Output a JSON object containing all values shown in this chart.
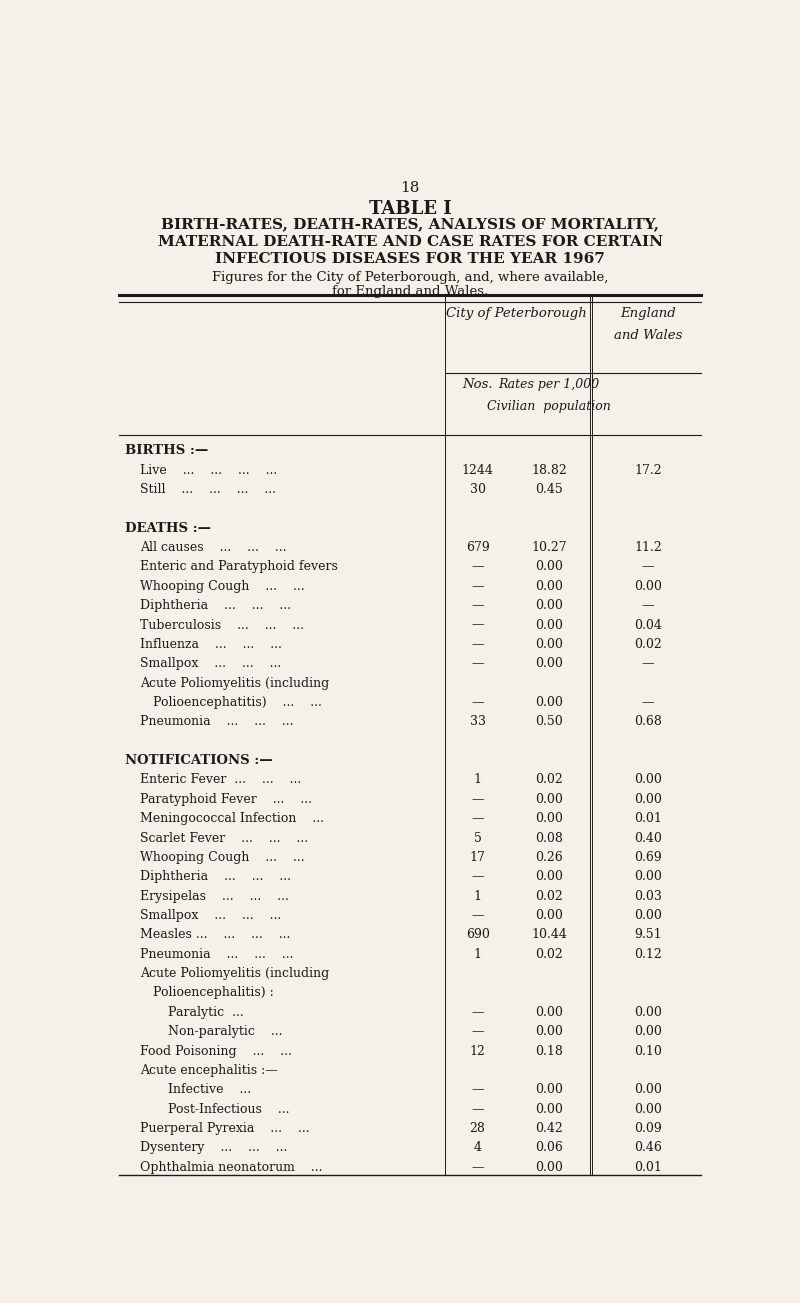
{
  "page_number": "18",
  "table_label": "TABLE I",
  "title_line1": "BIRTH-RATES, DEATH-RATES, ANALYSIS OF MORTALITY,",
  "title_line2": "MATERNAL DEATH-RATE AND CASE RATES FOR CERTAIN",
  "title_line3": "INFECTIOUS DISEASES FOR THE YEAR 1967",
  "subtitle_line1": "Figures for the City of Peterborough, and, where available,",
  "subtitle_line2": "for England and Wales.",
  "col_header1": "City of Peterborough",
  "col_header2a": "England",
  "col_header2b": "and Wales",
  "sub_header_nos": "Nos.",
  "sub_header_rates1": "Rates per 1,000",
  "sub_header_rates2": "Civilian  population",
  "background_color": "#f5f0e8",
  "text_color": "#1a1a1a",
  "rows": [
    {
      "section": "BIRTHS :—",
      "indent": 0,
      "label": "",
      "nos": "",
      "rate": "",
      "ew": ""
    },
    {
      "section": "",
      "indent": 1,
      "label": "Live    ...    ...    ...    ...",
      "nos": "1244",
      "rate": "18.82",
      "ew": "17.2"
    },
    {
      "section": "",
      "indent": 1,
      "label": "Still    ...    ...    ...    ...",
      "nos": "30",
      "rate": "0.45",
      "ew": ""
    },
    {
      "section": "",
      "indent": 0,
      "label": "",
      "nos": "",
      "rate": "",
      "ew": ""
    },
    {
      "section": "DEATHS :—",
      "indent": 0,
      "label": "",
      "nos": "",
      "rate": "",
      "ew": ""
    },
    {
      "section": "",
      "indent": 1,
      "label": "All causes    ...    ...    ...",
      "nos": "679",
      "rate": "10.27",
      "ew": "11.2"
    },
    {
      "section": "",
      "indent": 1,
      "label": "Enteric and Paratyphoid fevers",
      "nos": "—",
      "rate": "0.00",
      "ew": "—"
    },
    {
      "section": "",
      "indent": 1,
      "label": "Whooping Cough    ...    ...",
      "nos": "—",
      "rate": "0.00",
      "ew": "0.00"
    },
    {
      "section": "",
      "indent": 1,
      "label": "Diphtheria    ...    ...    ...",
      "nos": "—",
      "rate": "0.00",
      "ew": "—"
    },
    {
      "section": "",
      "indent": 1,
      "label": "Tuberculosis    ...    ...    ...",
      "nos": "—",
      "rate": "0.00",
      "ew": "0.04"
    },
    {
      "section": "",
      "indent": 1,
      "label": "Influenza    ...    ...    ...",
      "nos": "—",
      "rate": "0.00",
      "ew": "0.02"
    },
    {
      "section": "",
      "indent": 1,
      "label": "Smallpox    ...    ...    ...",
      "nos": "—",
      "rate": "0.00",
      "ew": "—"
    },
    {
      "section": "",
      "indent": 1,
      "label": "Acute Poliomyelitis (including",
      "nos": "",
      "rate": "",
      "ew": ""
    },
    {
      "section": "",
      "indent": 2,
      "label": "Polioencephatitis)    ...    ...",
      "nos": "—",
      "rate": "0.00",
      "ew": "—"
    },
    {
      "section": "",
      "indent": 1,
      "label": "Pneumonia    ...    ...    ...",
      "nos": "33",
      "rate": "0.50",
      "ew": "0.68"
    },
    {
      "section": "",
      "indent": 0,
      "label": "",
      "nos": "",
      "rate": "",
      "ew": ""
    },
    {
      "section": "NOTIFICATIONS :—",
      "indent": 0,
      "label": "",
      "nos": "",
      "rate": "",
      "ew": ""
    },
    {
      "section": "",
      "indent": 1,
      "label": "Enteric Fever  ...    ...    ...",
      "nos": "1",
      "rate": "0.02",
      "ew": "0.00"
    },
    {
      "section": "",
      "indent": 1,
      "label": "Paratyphoid Fever    ...    ...",
      "nos": "—",
      "rate": "0.00",
      "ew": "0.00"
    },
    {
      "section": "",
      "indent": 1,
      "label": "Meningococcal Infection    ...",
      "nos": "—",
      "rate": "0.00",
      "ew": "0.01"
    },
    {
      "section": "",
      "indent": 1,
      "label": "Scarlet Fever    ...    ...    ...",
      "nos": "5",
      "rate": "0.08",
      "ew": "0.40"
    },
    {
      "section": "",
      "indent": 1,
      "label": "Whooping Cough    ...    ...",
      "nos": "17",
      "rate": "0.26",
      "ew": "0.69"
    },
    {
      "section": "",
      "indent": 1,
      "label": "Diphtheria    ...    ...    ...",
      "nos": "—",
      "rate": "0.00",
      "ew": "0.00"
    },
    {
      "section": "",
      "indent": 1,
      "label": "Erysipelas    ...    ...    ...",
      "nos": "1",
      "rate": "0.02",
      "ew": "0.03"
    },
    {
      "section": "",
      "indent": 1,
      "label": "Smallpox    ...    ...    ...",
      "nos": "—",
      "rate": "0.00",
      "ew": "0.00"
    },
    {
      "section": "",
      "indent": 1,
      "label": "Measles ...    ...    ...    ...",
      "nos": "690",
      "rate": "10.44",
      "ew": "9.51"
    },
    {
      "section": "",
      "indent": 1,
      "label": "Pneumonia    ...    ...    ...",
      "nos": "1",
      "rate": "0.02",
      "ew": "0.12"
    },
    {
      "section": "",
      "indent": 1,
      "label": "Acute Poliomyelitis (including",
      "nos": "",
      "rate": "",
      "ew": ""
    },
    {
      "section": "",
      "indent": 2,
      "label": "Polioencephalitis) :",
      "nos": "",
      "rate": "",
      "ew": ""
    },
    {
      "section": "",
      "indent": 3,
      "label": "Paralytic  ...",
      "nos": "—",
      "rate": "0.00",
      "ew": "0.00"
    },
    {
      "section": "",
      "indent": 3,
      "label": "Non-paralytic    ...",
      "nos": "—",
      "rate": "0.00",
      "ew": "0.00"
    },
    {
      "section": "",
      "indent": 1,
      "label": "Food Poisoning    ...    ...",
      "nos": "12",
      "rate": "0.18",
      "ew": "0.10"
    },
    {
      "section": "",
      "indent": 1,
      "label": "Acute encephalitis :—",
      "nos": "",
      "rate": "",
      "ew": ""
    },
    {
      "section": "",
      "indent": 3,
      "label": "Infective    ...",
      "nos": "—",
      "rate": "0.00",
      "ew": "0.00"
    },
    {
      "section": "",
      "indent": 3,
      "label": "Post-Infectious    ...",
      "nos": "—",
      "rate": "0.00",
      "ew": "0.00"
    },
    {
      "section": "",
      "indent": 1,
      "label": "Puerperal Pyrexia    ...    ...",
      "nos": "28",
      "rate": "0.42",
      "ew": "0.09"
    },
    {
      "section": "",
      "indent": 1,
      "label": "Dysentery    ...    ...    ...",
      "nos": "4",
      "rate": "0.06",
      "ew": "0.46"
    },
    {
      "section": "",
      "indent": 1,
      "label": "Ophthalmia neonatorum    ...",
      "nos": "—",
      "rate": "0.00",
      "ew": "0.01"
    }
  ]
}
